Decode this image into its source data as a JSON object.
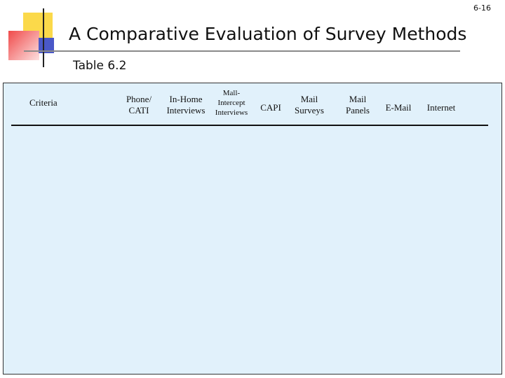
{
  "page_number": "6-16",
  "header": {
    "title": "A Comparative Evaluation of Survey Methods",
    "subtitle": "Table 6.2"
  },
  "table": {
    "columns": [
      [
        "Criteria"
      ],
      [
        "Phone/",
        "CATI"
      ],
      [
        "In-Home",
        "Interviews"
      ],
      [
        "Mall-",
        "Intercept",
        "Interviews"
      ],
      [
        "CAPI"
      ],
      [
        "Mail",
        "Surveys"
      ],
      [
        "Mail",
        "Panels"
      ],
      [
        "E-Mail"
      ],
      [
        "Internet"
      ]
    ]
  }
}
